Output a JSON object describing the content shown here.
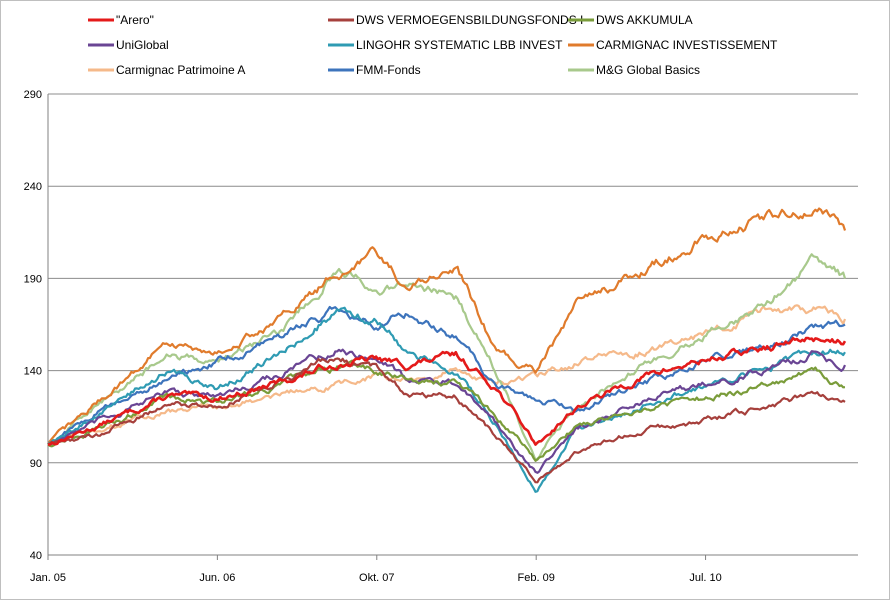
{
  "chart_data": {
    "type": "line",
    "title": "",
    "xlabel": "",
    "ylabel": "",
    "ylim": [
      40,
      290
    ],
    "yticks": [
      40,
      90,
      140,
      190,
      240,
      290
    ],
    "x_tick_labels": [
      "Jan. 05",
      "Jun. 06",
      "Okt. 07",
      "Feb. 09",
      "Jul. 10"
    ],
    "x_tick_dates": [
      "2005-01",
      "2006-06",
      "2007-10",
      "2009-02",
      "2010-07"
    ],
    "grid": "horizontal",
    "legend_position": "top",
    "series": [
      {
        "name": "\"Arero\"",
        "color": "#e41a1a",
        "x": [
          "2005-01",
          "2005-06",
          "2006-01",
          "2006-06",
          "2006-12",
          "2007-06",
          "2007-10",
          "2008-01",
          "2008-06",
          "2008-10",
          "2009-02",
          "2009-06",
          "2010-01",
          "2010-07",
          "2011-01",
          "2011-06",
          "2011-09"
        ],
        "values": [
          100,
          110,
          126,
          125,
          133,
          144,
          146,
          143,
          148,
          131,
          100,
          120,
          137,
          146,
          152,
          158,
          156
        ]
      },
      {
        "name": "DWS VERMOEGENSBILDUNGSFONDS  I",
        "color": "#a6403c",
        "x": [
          "2005-01",
          "2005-06",
          "2006-01",
          "2006-06",
          "2006-12",
          "2007-06",
          "2007-10",
          "2008-01",
          "2008-06",
          "2008-10",
          "2009-02",
          "2009-06",
          "2010-01",
          "2010-07",
          "2011-01",
          "2011-06",
          "2011-09"
        ],
        "values": [
          100,
          105,
          122,
          121,
          135,
          146,
          142,
          128,
          126,
          104,
          80,
          96,
          108,
          113,
          120,
          128,
          123
        ]
      },
      {
        "name": "DWS AKKUMULA",
        "color": "#7a9c3a",
        "x": [
          "2005-01",
          "2005-06",
          "2006-01",
          "2006-06",
          "2006-12",
          "2007-06",
          "2007-10",
          "2008-01",
          "2008-06",
          "2008-10",
          "2009-02",
          "2009-06",
          "2010-01",
          "2010-07",
          "2011-01",
          "2011-06",
          "2011-09"
        ],
        "values": [
          100,
          108,
          126,
          123,
          132,
          142,
          140,
          135,
          134,
          115,
          92,
          110,
          120,
          125,
          132,
          139,
          131
        ]
      },
      {
        "name": "UniGlobal",
        "color": "#6a4594",
        "x": [
          "2005-01",
          "2005-06",
          "2006-01",
          "2006-06",
          "2006-12",
          "2007-06",
          "2007-10",
          "2008-01",
          "2008-06",
          "2008-10",
          "2009-02",
          "2009-06",
          "2010-01",
          "2010-07",
          "2011-01",
          "2011-06",
          "2011-09"
        ],
        "values": [
          100,
          112,
          128,
          126,
          138,
          151,
          148,
          136,
          133,
          110,
          85,
          108,
          124,
          133,
          140,
          149,
          143
        ]
      },
      {
        "name": "LINGOHR SYSTEMATIC  LBB INVEST",
        "color": "#2f9bb3",
        "x": [
          "2005-01",
          "2005-06",
          "2006-01",
          "2006-06",
          "2006-12",
          "2007-06",
          "2007-10",
          "2008-01",
          "2008-06",
          "2008-10",
          "2009-02",
          "2009-06",
          "2010-01",
          "2010-07",
          "2011-01",
          "2011-06",
          "2011-09"
        ],
        "values": [
          100,
          116,
          140,
          130,
          148,
          172,
          168,
          150,
          140,
          110,
          75,
          108,
          122,
          132,
          140,
          152,
          150
        ]
      },
      {
        "name": "CARMIGNAC  INVESTISSEMENT",
        "color": "#e07b2c",
        "x": [
          "2005-01",
          "2005-06",
          "2006-01",
          "2006-06",
          "2006-12",
          "2007-06",
          "2007-10",
          "2008-01",
          "2008-06",
          "2008-10",
          "2009-02",
          "2009-06",
          "2010-01",
          "2010-07",
          "2011-01",
          "2011-06",
          "2011-09"
        ],
        "values": [
          100,
          123,
          155,
          150,
          166,
          192,
          204,
          185,
          196,
          150,
          140,
          175,
          195,
          212,
          222,
          228,
          216
        ]
      },
      {
        "name": "Carmignac Patrimoine A",
        "color": "#f5b98a",
        "x": [
          "2005-01",
          "2005-06",
          "2006-01",
          "2006-06",
          "2006-12",
          "2007-06",
          "2007-10",
          "2008-01",
          "2008-06",
          "2008-10",
          "2009-02",
          "2009-06",
          "2010-01",
          "2010-07",
          "2011-01",
          "2011-06",
          "2011-09"
        ],
        "values": [
          100,
          108,
          118,
          120,
          126,
          133,
          137,
          135,
          140,
          132,
          137,
          144,
          151,
          160,
          172,
          174,
          168
        ]
      },
      {
        "name": "FMM-Fonds",
        "color": "#3d74bc",
        "x": [
          "2005-01",
          "2005-06",
          "2006-01",
          "2006-06",
          "2006-12",
          "2007-06",
          "2007-10",
          "2008-01",
          "2008-06",
          "2008-10",
          "2009-02",
          "2009-06",
          "2010-01",
          "2010-07",
          "2011-01",
          "2011-06",
          "2011-09"
        ],
        "values": [
          100,
          118,
          135,
          145,
          158,
          174,
          164,
          172,
          158,
          132,
          126,
          119,
          133,
          146,
          152,
          164,
          165
        ]
      },
      {
        "name": "M&G Global Basics",
        "color": "#a8c98c",
        "x": [
          "2005-01",
          "2005-06",
          "2006-01",
          "2006-06",
          "2006-12",
          "2007-06",
          "2007-10",
          "2008-01",
          "2008-06",
          "2008-10",
          "2009-02",
          "2009-06",
          "2010-01",
          "2010-07",
          "2011-01",
          "2011-06",
          "2011-09"
        ],
        "values": [
          100,
          122,
          148,
          146,
          158,
          195,
          184,
          188,
          180,
          140,
          93,
          120,
          144,
          160,
          176,
          200,
          190
        ]
      }
    ]
  }
}
